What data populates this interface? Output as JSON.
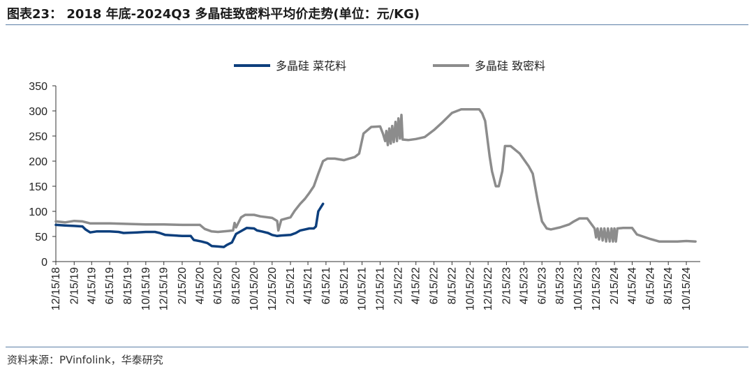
{
  "header": {
    "title": "图表23： 2018 年底-2024Q3 多晶硅致密料平均价走势(单位：元/KG)"
  },
  "footer": {
    "source": "资料来源：PVinfolink，华泰研究"
  },
  "colors": {
    "series_blue": "#0d3f7d",
    "series_gray": "#8c8c8c",
    "rule": "#5b7ea6"
  },
  "chart_data": {
    "type": "line",
    "title": "",
    "xlabel": "",
    "ylabel": "",
    "ylim": [
      0,
      350
    ],
    "yticks": [
      0,
      50,
      100,
      150,
      200,
      250,
      300,
      350
    ],
    "xlim": [
      "2018-12-15",
      "2024-12-01"
    ],
    "xticks": [
      "12/15/18",
      "2/15/19",
      "4/15/19",
      "6/15/19",
      "8/15/19",
      "10/15/19",
      "12/15/19",
      "2/15/20",
      "4/15/20",
      "6/15/20",
      "8/15/20",
      "10/15/20",
      "12/15/20",
      "2/15/21",
      "4/15/21",
      "6/15/21",
      "8/15/21",
      "10/15/21",
      "12/15/21",
      "2/15/22",
      "4/15/22",
      "6/15/22",
      "8/15/22",
      "10/15/22",
      "12/15/22",
      "2/15/23",
      "4/15/23",
      "6/15/23",
      "8/15/23",
      "10/15/23",
      "12/15/23",
      "2/15/24",
      "4/15/24",
      "6/15/24",
      "8/15/24",
      "10/15/24"
    ],
    "legend_position": "top",
    "grid": false,
    "series": [
      {
        "name": "多晶硅 菜花料",
        "color": "#0d3f7d",
        "points": [
          [
            "2018-12-15",
            73
          ],
          [
            "2019-01-15",
            72
          ],
          [
            "2019-02-15",
            71
          ],
          [
            "2019-03-15",
            70
          ],
          [
            "2019-03-25",
            64
          ],
          [
            "2019-04-10",
            58
          ],
          [
            "2019-05-01",
            60
          ],
          [
            "2019-06-15",
            60
          ],
          [
            "2019-07-15",
            59
          ],
          [
            "2019-08-01",
            57
          ],
          [
            "2019-09-15",
            58
          ],
          [
            "2019-10-15",
            59
          ],
          [
            "2019-11-15",
            59
          ],
          [
            "2019-12-01",
            57
          ],
          [
            "2019-12-20",
            53
          ],
          [
            "2020-02-15",
            51
          ],
          [
            "2020-03-15",
            51
          ],
          [
            "2020-03-25",
            43
          ],
          [
            "2020-04-20",
            40
          ],
          [
            "2020-05-10",
            37
          ],
          [
            "2020-05-25",
            31
          ],
          [
            "2020-06-15",
            30
          ],
          [
            "2020-07-05",
            29
          ],
          [
            "2020-07-15",
            33
          ],
          [
            "2020-08-01",
            38
          ],
          [
            "2020-08-15",
            55
          ],
          [
            "2020-09-05",
            62
          ],
          [
            "2020-09-20",
            67
          ],
          [
            "2020-10-15",
            66
          ],
          [
            "2020-10-25",
            62
          ],
          [
            "2020-11-10",
            60
          ],
          [
            "2020-12-01",
            57
          ],
          [
            "2020-12-15",
            53
          ],
          [
            "2021-01-01",
            51
          ],
          [
            "2021-01-15",
            52
          ],
          [
            "2021-02-15",
            53
          ],
          [
            "2021-03-05",
            57
          ],
          [
            "2021-03-20",
            62
          ],
          [
            "2021-04-05",
            64
          ],
          [
            "2021-04-20",
            66
          ],
          [
            "2021-05-05",
            66
          ],
          [
            "2021-05-12",
            70
          ],
          [
            "2021-05-20",
            100
          ],
          [
            "2021-06-05",
            115
          ]
        ]
      },
      {
        "name": "多晶硅 致密料",
        "color": "#8c8c8c",
        "points": [
          [
            "2018-12-15",
            80
          ],
          [
            "2019-01-15",
            78
          ],
          [
            "2019-02-15",
            81
          ],
          [
            "2019-03-15",
            80
          ],
          [
            "2019-04-10",
            76
          ],
          [
            "2019-06-15",
            76
          ],
          [
            "2019-08-15",
            75
          ],
          [
            "2019-10-15",
            74
          ],
          [
            "2019-12-15",
            74
          ],
          [
            "2020-02-15",
            73
          ],
          [
            "2020-04-15",
            73
          ],
          [
            "2020-05-01",
            65
          ],
          [
            "2020-05-25",
            60
          ],
          [
            "2020-06-15",
            59
          ],
          [
            "2020-07-20",
            61
          ],
          [
            "2020-08-05",
            62
          ],
          [
            "2020-08-10",
            77
          ],
          [
            "2020-08-15",
            68
          ],
          [
            "2020-09-01",
            88
          ],
          [
            "2020-09-15",
            93
          ],
          [
            "2020-10-15",
            93
          ],
          [
            "2020-11-05",
            90
          ],
          [
            "2020-12-01",
            88
          ],
          [
            "2020-12-15",
            87
          ],
          [
            "2021-01-01",
            81
          ],
          [
            "2021-01-05",
            62
          ],
          [
            "2021-01-15",
            83
          ],
          [
            "2021-02-15",
            88
          ],
          [
            "2021-03-01",
            101
          ],
          [
            "2021-03-20",
            115
          ],
          [
            "2021-04-05",
            125
          ],
          [
            "2021-04-20",
            137
          ],
          [
            "2021-05-05",
            150
          ],
          [
            "2021-05-20",
            175
          ],
          [
            "2021-06-05",
            200
          ],
          [
            "2021-06-20",
            205
          ],
          [
            "2021-07-15",
            205
          ],
          [
            "2021-08-15",
            202
          ],
          [
            "2021-09-01",
            205
          ],
          [
            "2021-09-20",
            208
          ],
          [
            "2021-10-05",
            215
          ],
          [
            "2021-10-20",
            255
          ],
          [
            "2021-11-15",
            268
          ],
          [
            "2021-12-15",
            269
          ],
          [
            "2021-12-25",
            254
          ],
          [
            "2022-01-01",
            240
          ],
          [
            "2022-01-05",
            260
          ],
          [
            "2022-01-10",
            232
          ],
          [
            "2022-01-15",
            265
          ],
          [
            "2022-01-20",
            235
          ],
          [
            "2022-01-25",
            270
          ],
          [
            "2022-01-30",
            238
          ],
          [
            "2022-02-05",
            278
          ],
          [
            "2022-02-10",
            240
          ],
          [
            "2022-02-15",
            285
          ],
          [
            "2022-02-20",
            245
          ],
          [
            "2022-02-25",
            292
          ],
          [
            "2022-03-01",
            243
          ],
          [
            "2022-03-20",
            242
          ],
          [
            "2022-04-15",
            244
          ],
          [
            "2022-05-15",
            248
          ],
          [
            "2022-06-15",
            262
          ],
          [
            "2022-07-15",
            278
          ],
          [
            "2022-08-15",
            296
          ],
          [
            "2022-09-15",
            303
          ],
          [
            "2022-10-15",
            303
          ],
          [
            "2022-11-15",
            303
          ],
          [
            "2022-11-25",
            295
          ],
          [
            "2022-12-05",
            280
          ],
          [
            "2022-12-20",
            210
          ],
          [
            "2022-12-28",
            180
          ],
          [
            "2023-01-10",
            150
          ],
          [
            "2023-01-20",
            150
          ],
          [
            "2023-02-01",
            180
          ],
          [
            "2023-02-10",
            230
          ],
          [
            "2023-03-01",
            230
          ],
          [
            "2023-04-01",
            215
          ],
          [
            "2023-05-01",
            190
          ],
          [
            "2023-05-15",
            175
          ],
          [
            "2023-06-01",
            120
          ],
          [
            "2023-06-15",
            80
          ],
          [
            "2023-07-01",
            66
          ],
          [
            "2023-07-15",
            64
          ],
          [
            "2023-08-15",
            68
          ],
          [
            "2023-09-15",
            74
          ],
          [
            "2023-10-01",
            80
          ],
          [
            "2023-10-20",
            86
          ],
          [
            "2023-11-15",
            86
          ],
          [
            "2023-12-01",
            73
          ],
          [
            "2023-12-10",
            66
          ],
          [
            "2023-12-15",
            48
          ],
          [
            "2023-12-20",
            66
          ],
          [
            "2023-12-25",
            44
          ],
          [
            "2024-01-01",
            66
          ],
          [
            "2024-01-06",
            42
          ],
          [
            "2024-01-12",
            66
          ],
          [
            "2024-01-18",
            40
          ],
          [
            "2024-01-24",
            66
          ],
          [
            "2024-01-30",
            40
          ],
          [
            "2024-02-05",
            66
          ],
          [
            "2024-02-10",
            40
          ],
          [
            "2024-02-15",
            66
          ],
          [
            "2024-02-20",
            40
          ],
          [
            "2024-02-25",
            66
          ],
          [
            "2024-03-15",
            67
          ],
          [
            "2024-04-15",
            67
          ],
          [
            "2024-05-01",
            54
          ],
          [
            "2024-06-15",
            45
          ],
          [
            "2024-07-15",
            40
          ],
          [
            "2024-08-15",
            40
          ],
          [
            "2024-09-15",
            40
          ],
          [
            "2024-10-15",
            41
          ],
          [
            "2024-11-15",
            40
          ]
        ]
      }
    ]
  }
}
